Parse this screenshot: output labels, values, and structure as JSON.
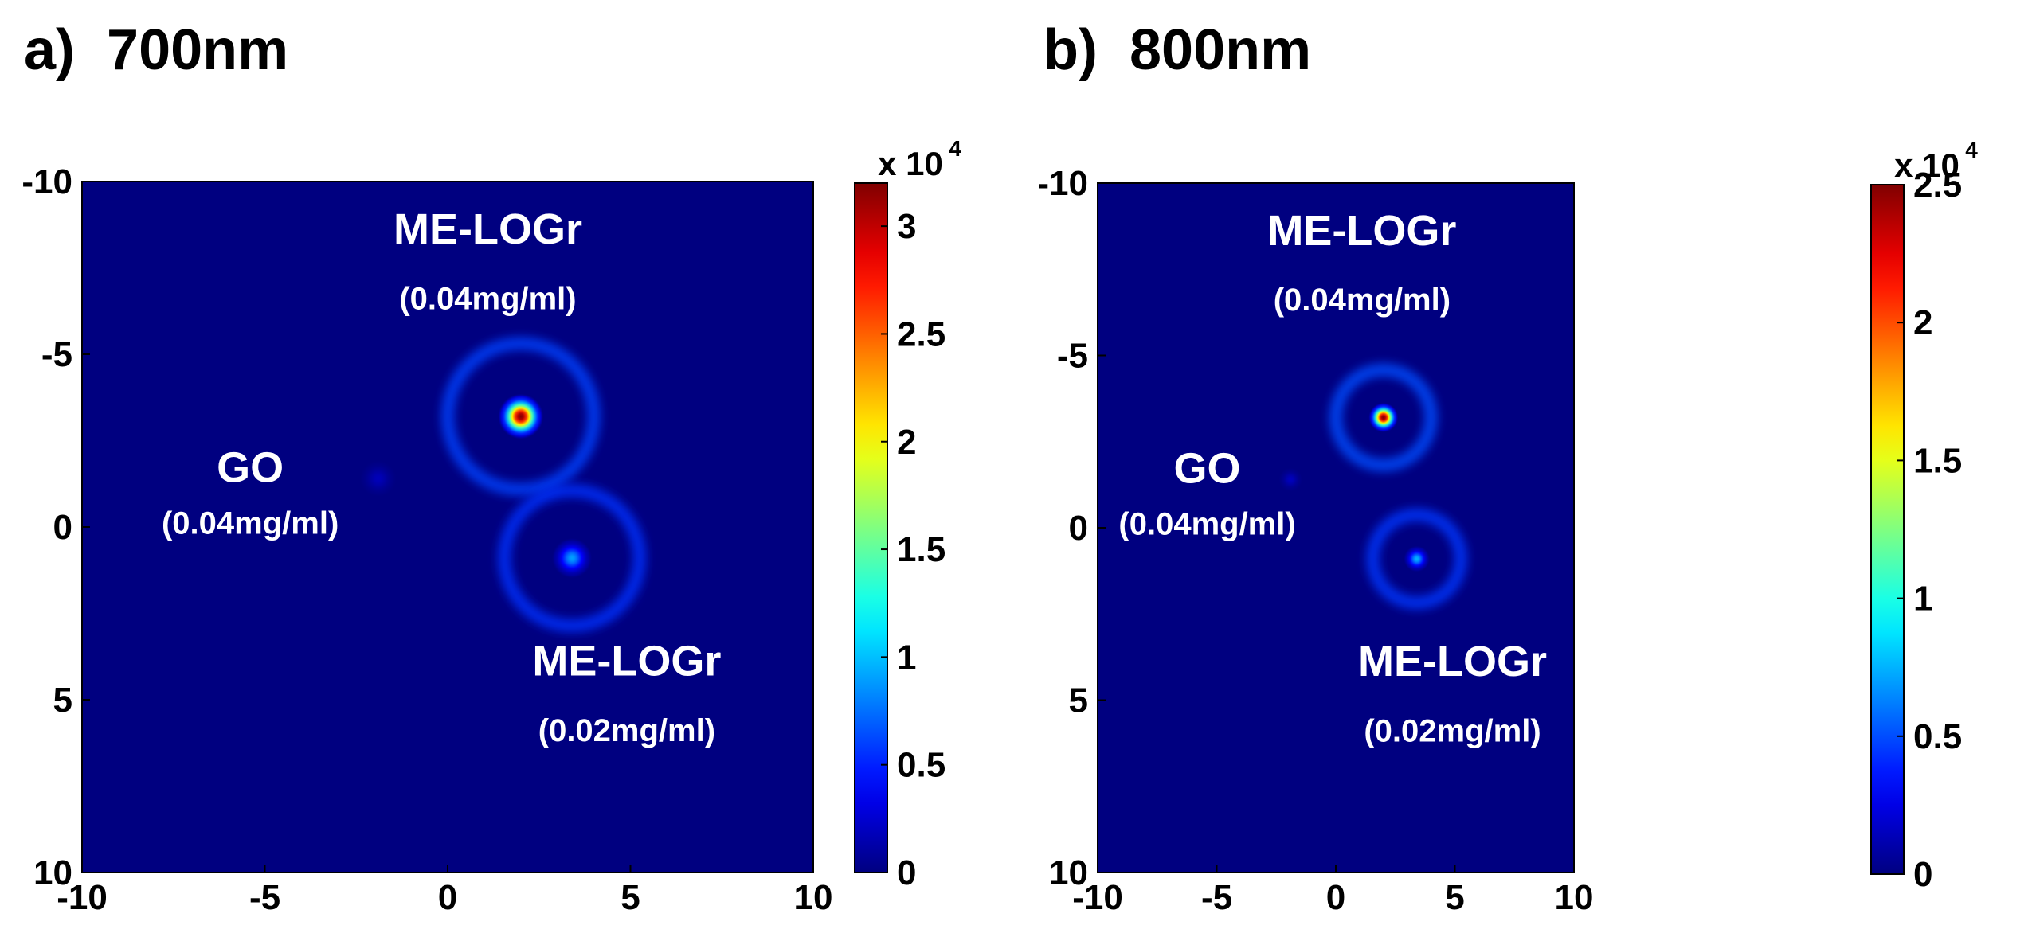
{
  "chart_data": [
    {
      "type": "heatmap",
      "panel_label": "a)",
      "title": "700nm",
      "xlim": [
        -10,
        10
      ],
      "ylim": [
        -10,
        10
      ],
      "x_ticks": [
        "-10",
        "-5",
        "0",
        "5",
        "10"
      ],
      "y_ticks": [
        "-10",
        "-5",
        "0",
        "5",
        "10"
      ],
      "colorbar": {
        "min": 0,
        "max": 32000,
        "multiplier": "x 10",
        "exponent": "4",
        "ticks": [
          "0",
          "0.5",
          "1",
          "1.5",
          "2",
          "2.5",
          "3"
        ],
        "tick_values": [
          0,
          0.5,
          1,
          1.5,
          2,
          2.5,
          3
        ],
        "cmax_scaled": 3.2
      },
      "sources": [
        {
          "x": 2.0,
          "y": -3.2,
          "peak": 3.2,
          "ring_radius": 2.0,
          "ring_level": 0.35,
          "label": "ME-LOGr",
          "sub": "(0.04mg/ml)"
        },
        {
          "x": 3.4,
          "y": 0.9,
          "peak": 0.9,
          "ring_radius": 1.85,
          "ring_level": 0.3,
          "label": "ME-LOGr",
          "sub": "(0.02mg/ml)"
        },
        {
          "x": -1.9,
          "y": -1.4,
          "peak": 0.18,
          "ring_radius": 0,
          "ring_level": 0,
          "label": "GO",
          "sub": "(0.04mg/ml)"
        }
      ]
    },
    {
      "type": "heatmap",
      "panel_label": "b)",
      "title": "800nm",
      "xlim": [
        -10,
        10
      ],
      "ylim": [
        -10,
        10
      ],
      "x_ticks": [
        "-10",
        "-5",
        "0",
        "5",
        "10"
      ],
      "y_ticks": [
        "-10",
        "-5",
        "0",
        "5",
        "10"
      ],
      "colorbar": {
        "min": 0,
        "max": 25000,
        "multiplier": "x 10",
        "exponent": "4",
        "ticks": [
          "0",
          "0.5",
          "1",
          "1.5",
          "2",
          "2.5"
        ],
        "tick_values": [
          0,
          0.5,
          1,
          1.5,
          2,
          2.5
        ],
        "cmax_scaled": 2.5
      },
      "sources": [
        {
          "x": 2.0,
          "y": -3.2,
          "peak": 2.5,
          "ring_radius": 2.0,
          "ring_level": 0.3,
          "label": "ME-LOGr",
          "sub": "(0.04mg/ml)"
        },
        {
          "x": 3.4,
          "y": 0.9,
          "peak": 0.75,
          "ring_radius": 1.85,
          "ring_level": 0.25,
          "label": "ME-LOGr",
          "sub": "(0.02mg/ml)"
        },
        {
          "x": -1.9,
          "y": -1.4,
          "peak": 0.15,
          "ring_radius": 0,
          "ring_level": 0,
          "label": "GO",
          "sub": "(0.04mg/ml)"
        }
      ]
    }
  ]
}
